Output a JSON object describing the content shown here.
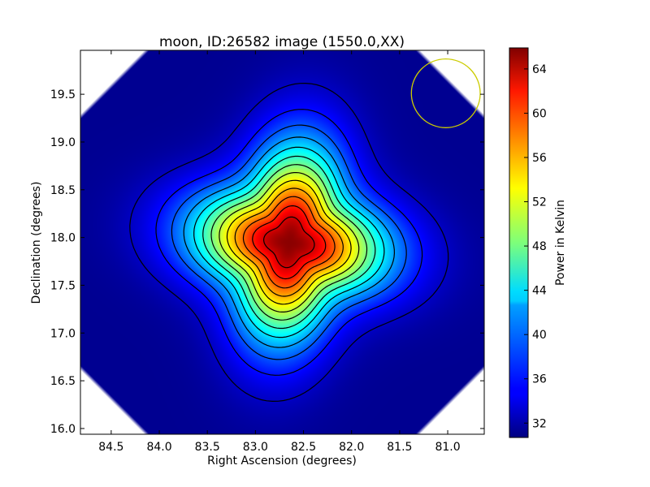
{
  "chart_data": {
    "type": "heatmap",
    "title": "moon, ID:26582 image (1550.0,XX)",
    "xlabel": "Right Ascension (degrees)",
    "ylabel": "Declination (degrees)",
    "colorbar_label": "Power in Kelvin",
    "colormap": "jet",
    "xlim": [
      84.82,
      80.62
    ],
    "ylim": [
      15.94,
      19.96
    ],
    "x_ticks": [
      "84.5",
      "84.0",
      "83.5",
      "83.0",
      "82.5",
      "82.0",
      "81.5",
      "81.0"
    ],
    "y_ticks": [
      "16.0",
      "16.5",
      "17.0",
      "17.5",
      "18.0",
      "18.5",
      "19.0",
      "19.5"
    ],
    "colorbar_range": [
      30.7,
      65.9
    ],
    "colorbar_ticks": [
      "32",
      "36",
      "40",
      "44",
      "48",
      "52",
      "56",
      "60",
      "64"
    ],
    "background_level": 31.3,
    "source": {
      "ra": 82.65,
      "dec": 17.95,
      "peak": 65.5
    },
    "contour_levels": [
      33,
      35.5,
      38,
      40.5,
      43,
      45.5,
      48,
      50.5,
      53,
      55.5,
      58,
      60.5,
      63,
      65.5
    ],
    "beam_circle": {
      "ra": 81.02,
      "dec": 19.51,
      "radius_dec": 0.36,
      "color": "#cccc00"
    },
    "grid": false
  }
}
